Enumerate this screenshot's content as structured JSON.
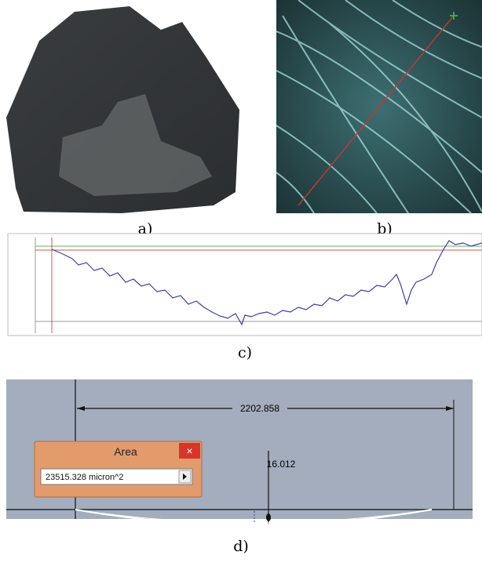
{
  "panels": {
    "a": {
      "label": "a)"
    },
    "b": {
      "label": "b)"
    },
    "c": {
      "label": "c)"
    },
    "d": {
      "label": "d)",
      "dimension_length": "2202.858",
      "dimension_depth": "16.012",
      "area_dialog": {
        "title": "Area",
        "close": "×",
        "value": "23515.328 micron^2"
      }
    }
  }
}
